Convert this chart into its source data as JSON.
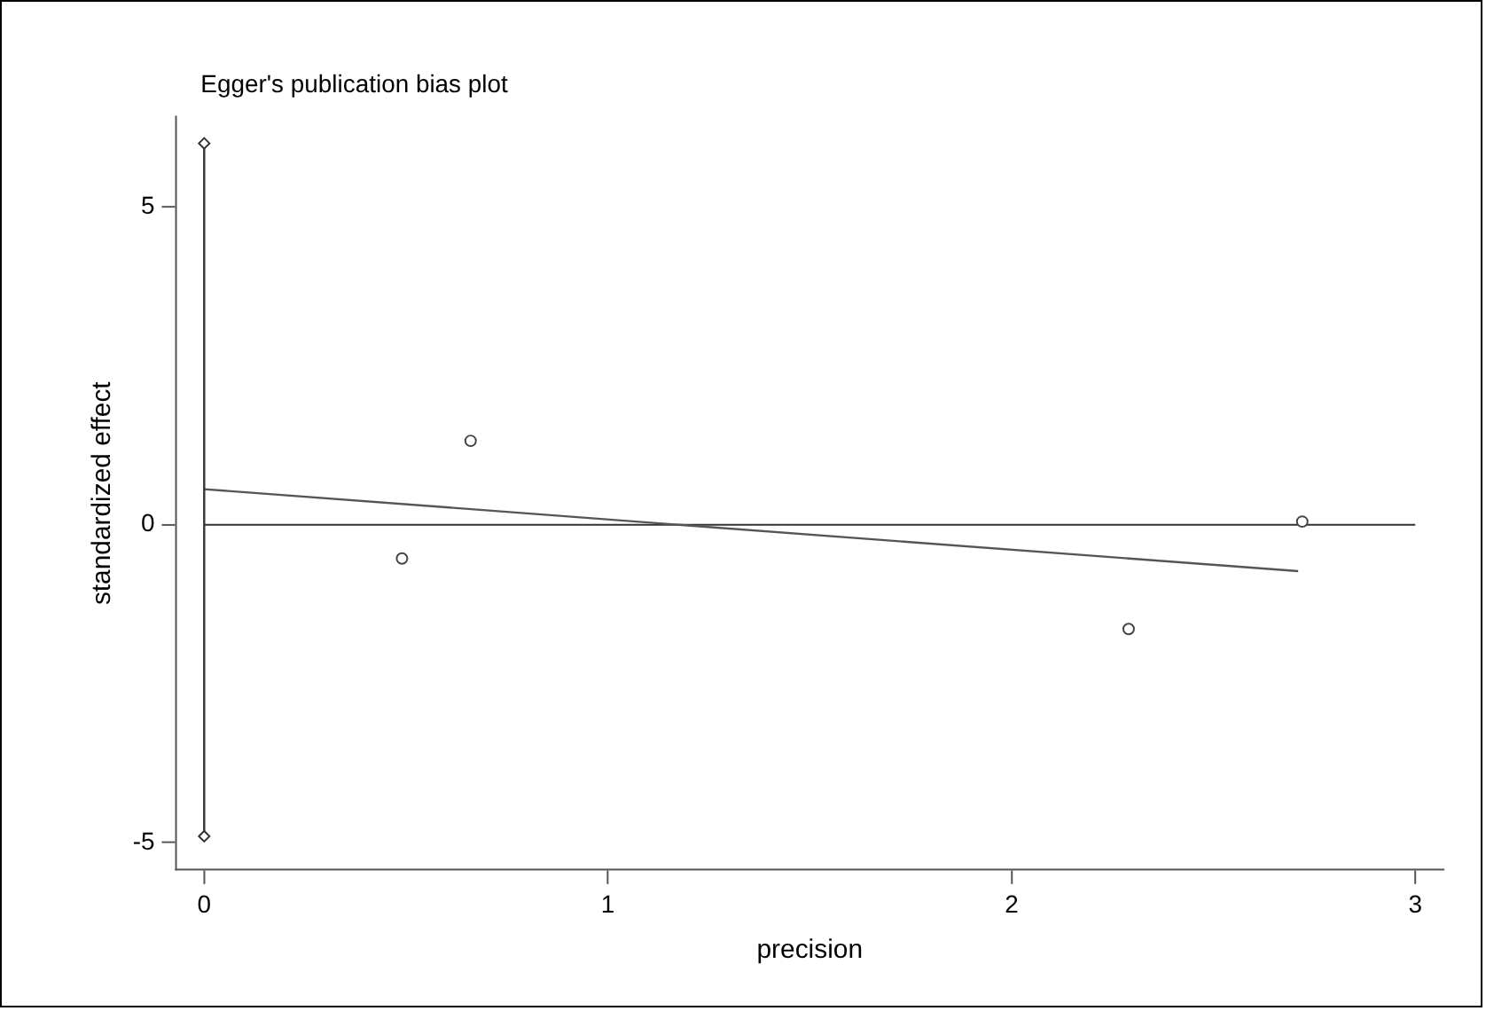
{
  "chart_data": {
    "type": "scatter",
    "title": "Egger's publication bias plot",
    "xlabel": "precision",
    "ylabel": "standardized effect",
    "xlim": [
      -0.07,
      3.07
    ],
    "ylim": [
      -5.43,
      6.42
    ],
    "xticks": [
      0,
      1,
      2,
      3
    ],
    "yticks": [
      -5,
      0,
      5
    ],
    "grid": false,
    "legend": false,
    "series": [
      {
        "color": "#444444",
        "marker": "circle",
        "x": [
          0.49,
          0.66,
          2.29,
          2.72
        ],
        "values": [
          -0.53,
          1.32,
          -1.64,
          0.05
        ]
      },
      {
        "type": "line",
        "color": "#333333",
        "marker": "diamond",
        "x": [
          0,
          0
        ],
        "values": [
          -4.9,
          6
        ]
      },
      {
        "type": "line",
        "color": "#555555",
        "marker": "none",
        "x": [
          0,
          2.71
        ],
        "values": [
          0.56,
          -0.73
        ]
      }
    ],
    "ref_lines": [
      {
        "axis": "y",
        "value": 0,
        "color": "#333333"
      }
    ]
  }
}
